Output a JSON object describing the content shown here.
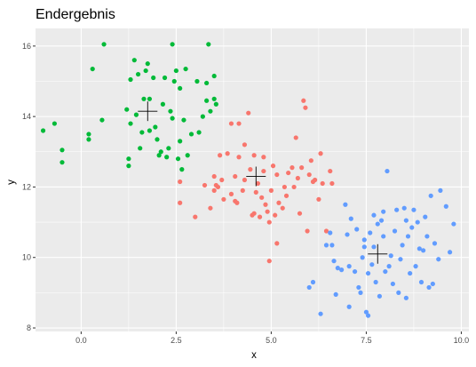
{
  "chart_data": {
    "type": "scatter",
    "title": "Endergebnis",
    "xlabel": "x",
    "ylabel": "y",
    "xlim": [
      -1.2,
      10.2
    ],
    "ylim": [
      7.9,
      16.5
    ],
    "x_ticks": [
      0,
      2.5,
      5,
      7.5,
      10
    ],
    "x_tick_labels": [
      "0.0",
      "2.5",
      "5.0",
      "7.5",
      "10.0"
    ],
    "y_ticks": [
      8,
      10,
      12,
      14,
      16
    ],
    "y_tick_labels": [
      "8",
      "10",
      "12",
      "14",
      "16"
    ],
    "grid": true,
    "legend": "none",
    "series": [
      {
        "color": "#00ba38",
        "centroid": [
          1.75,
          14.15
        ],
        "points": [
          [
            -1.0,
            13.6
          ],
          [
            -0.7,
            13.8
          ],
          [
            -0.5,
            13.05
          ],
          [
            -0.5,
            12.7
          ],
          [
            0.2,
            13.5
          ],
          [
            0.2,
            13.35
          ],
          [
            0.3,
            15.35
          ],
          [
            0.55,
            13.9
          ],
          [
            0.6,
            16.05
          ],
          [
            1.2,
            14.2
          ],
          [
            1.25,
            12.8
          ],
          [
            1.25,
            12.6
          ],
          [
            1.3,
            13.8
          ],
          [
            1.3,
            15.05
          ],
          [
            1.4,
            15.6
          ],
          [
            1.45,
            14.05
          ],
          [
            1.5,
            15.2
          ],
          [
            1.55,
            13.1
          ],
          [
            1.6,
            13.55
          ],
          [
            1.65,
            14.5
          ],
          [
            1.7,
            15.3
          ],
          [
            1.75,
            15.5
          ],
          [
            1.8,
            14.5
          ],
          [
            1.8,
            13.6
          ],
          [
            1.9,
            15.1
          ],
          [
            1.95,
            13.7
          ],
          [
            2.0,
            13.35
          ],
          [
            2.05,
            12.9
          ],
          [
            2.1,
            13.0
          ],
          [
            2.15,
            14.35
          ],
          [
            2.2,
            15.1
          ],
          [
            2.25,
            12.85
          ],
          [
            2.3,
            13.1
          ],
          [
            2.35,
            14.15
          ],
          [
            2.4,
            16.05
          ],
          [
            2.4,
            13.95
          ],
          [
            2.45,
            15.0
          ],
          [
            2.5,
            15.3
          ],
          [
            2.55,
            12.8
          ],
          [
            2.6,
            13.3
          ],
          [
            2.6,
            14.8
          ],
          [
            2.65,
            12.5
          ],
          [
            2.7,
            13.9
          ],
          [
            2.75,
            15.35
          ],
          [
            2.8,
            12.9
          ],
          [
            2.9,
            13.5
          ],
          [
            3.05,
            15.0
          ],
          [
            3.1,
            13.55
          ],
          [
            3.2,
            14.0
          ],
          [
            3.3,
            14.95
          ],
          [
            3.35,
            16.05
          ],
          [
            3.4,
            14.15
          ],
          [
            3.5,
            14.5
          ],
          [
            3.5,
            15.15
          ],
          [
            3.55,
            14.35
          ],
          [
            3.3,
            14.45
          ]
        ]
      },
      {
        "color": "#f8766d",
        "centroid": [
          4.6,
          12.3
        ],
        "points": [
          [
            2.6,
            12.15
          ],
          [
            2.6,
            11.55
          ],
          [
            3.0,
            11.15
          ],
          [
            3.25,
            12.05
          ],
          [
            3.4,
            11.4
          ],
          [
            3.5,
            11.9
          ],
          [
            3.5,
            12.3
          ],
          [
            3.55,
            12.05
          ],
          [
            3.6,
            12.0
          ],
          [
            3.65,
            12.9
          ],
          [
            3.7,
            12.2
          ],
          [
            3.75,
            11.65
          ],
          [
            3.85,
            12.95
          ],
          [
            3.95,
            11.8
          ],
          [
            3.95,
            13.8
          ],
          [
            4.05,
            11.6
          ],
          [
            4.05,
            12.3
          ],
          [
            4.1,
            11.55
          ],
          [
            4.15,
            13.8
          ],
          [
            4.15,
            12.85
          ],
          [
            4.25,
            11.9
          ],
          [
            4.3,
            12.2
          ],
          [
            4.3,
            13.2
          ],
          [
            4.4,
            14.1
          ],
          [
            4.45,
            12.5
          ],
          [
            4.5,
            11.2
          ],
          [
            4.55,
            11.25
          ],
          [
            4.55,
            12.9
          ],
          [
            4.6,
            11.85
          ],
          [
            4.65,
            12.1
          ],
          [
            4.7,
            11.15
          ],
          [
            4.75,
            11.7
          ],
          [
            4.8,
            12.45
          ],
          [
            4.8,
            12.85
          ],
          [
            4.85,
            11.5
          ],
          [
            4.9,
            11.3
          ],
          [
            4.95,
            9.9
          ],
          [
            4.95,
            11.0
          ],
          [
            5.0,
            11.9
          ],
          [
            5.05,
            12.6
          ],
          [
            5.1,
            11.2
          ],
          [
            5.15,
            10.4
          ],
          [
            5.15,
            12.35
          ],
          [
            5.2,
            11.55
          ],
          [
            5.3,
            11.4
          ],
          [
            5.35,
            12.0
          ],
          [
            5.4,
            11.75
          ],
          [
            5.45,
            12.4
          ],
          [
            5.55,
            12.55
          ],
          [
            5.6,
            12.0
          ],
          [
            5.65,
            13.4
          ],
          [
            5.7,
            12.25
          ],
          [
            5.75,
            11.25
          ],
          [
            5.8,
            12.55
          ],
          [
            5.85,
            14.45
          ],
          [
            5.9,
            14.25
          ],
          [
            6.0,
            12.35
          ],
          [
            6.05,
            12.75
          ],
          [
            6.1,
            12.15
          ],
          [
            6.15,
            12.2
          ],
          [
            6.25,
            11.65
          ],
          [
            6.3,
            12.95
          ],
          [
            6.35,
            12.1
          ],
          [
            6.45,
            10.75
          ],
          [
            6.55,
            12.45
          ],
          [
            6.6,
            12.1
          ],
          [
            5.95,
            10.75
          ]
        ]
      },
      {
        "color": "#619cff",
        "centroid": [
          7.8,
          10.1
        ],
        "points": [
          [
            6.0,
            9.15
          ],
          [
            6.1,
            9.3
          ],
          [
            6.3,
            8.4
          ],
          [
            6.45,
            10.35
          ],
          [
            6.55,
            10.7
          ],
          [
            6.6,
            10.35
          ],
          [
            6.65,
            9.9
          ],
          [
            6.7,
            8.95
          ],
          [
            6.75,
            9.7
          ],
          [
            6.85,
            9.65
          ],
          [
            6.95,
            11.5
          ],
          [
            7.0,
            10.65
          ],
          [
            7.05,
            8.6
          ],
          [
            7.1,
            11.1
          ],
          [
            7.2,
            9.6
          ],
          [
            7.25,
            10.8
          ],
          [
            7.3,
            9.15
          ],
          [
            7.35,
            9.0
          ],
          [
            7.4,
            10.0
          ],
          [
            7.45,
            10.5
          ],
          [
            7.5,
            8.45
          ],
          [
            7.55,
            8.35
          ],
          [
            7.55,
            9.55
          ],
          [
            7.6,
            10.7
          ],
          [
            7.65,
            9.8
          ],
          [
            7.7,
            10.3
          ],
          [
            7.7,
            11.2
          ],
          [
            7.75,
            9.3
          ],
          [
            7.8,
            10.95
          ],
          [
            7.85,
            8.9
          ],
          [
            7.9,
            11.05
          ],
          [
            7.95,
            10.6
          ],
          [
            8.0,
            9.6
          ],
          [
            8.05,
            12.45
          ],
          [
            8.1,
            9.75
          ],
          [
            8.15,
            10.05
          ],
          [
            8.2,
            9.25
          ],
          [
            8.25,
            10.75
          ],
          [
            8.3,
            11.35
          ],
          [
            8.35,
            9.0
          ],
          [
            8.4,
            9.95
          ],
          [
            8.45,
            10.35
          ],
          [
            8.5,
            11.4
          ],
          [
            8.55,
            11.05
          ],
          [
            8.6,
            10.6
          ],
          [
            8.65,
            9.55
          ],
          [
            8.7,
            10.85
          ],
          [
            8.75,
            11.35
          ],
          [
            8.8,
            9.75
          ],
          [
            8.85,
            11.0
          ],
          [
            8.9,
            10.25
          ],
          [
            8.95,
            9.3
          ],
          [
            9.0,
            10.2
          ],
          [
            9.05,
            11.15
          ],
          [
            9.1,
            10.6
          ],
          [
            9.15,
            9.15
          ],
          [
            9.2,
            11.75
          ],
          [
            9.25,
            9.25
          ],
          [
            9.3,
            10.4
          ],
          [
            9.4,
            9.95
          ],
          [
            9.45,
            11.9
          ],
          [
            9.6,
            11.45
          ],
          [
            9.7,
            10.15
          ],
          [
            9.8,
            10.95
          ],
          [
            7.45,
            10.3
          ],
          [
            7.95,
            11.3
          ],
          [
            8.55,
            8.85
          ],
          [
            7.05,
            9.75
          ]
        ]
      }
    ]
  }
}
